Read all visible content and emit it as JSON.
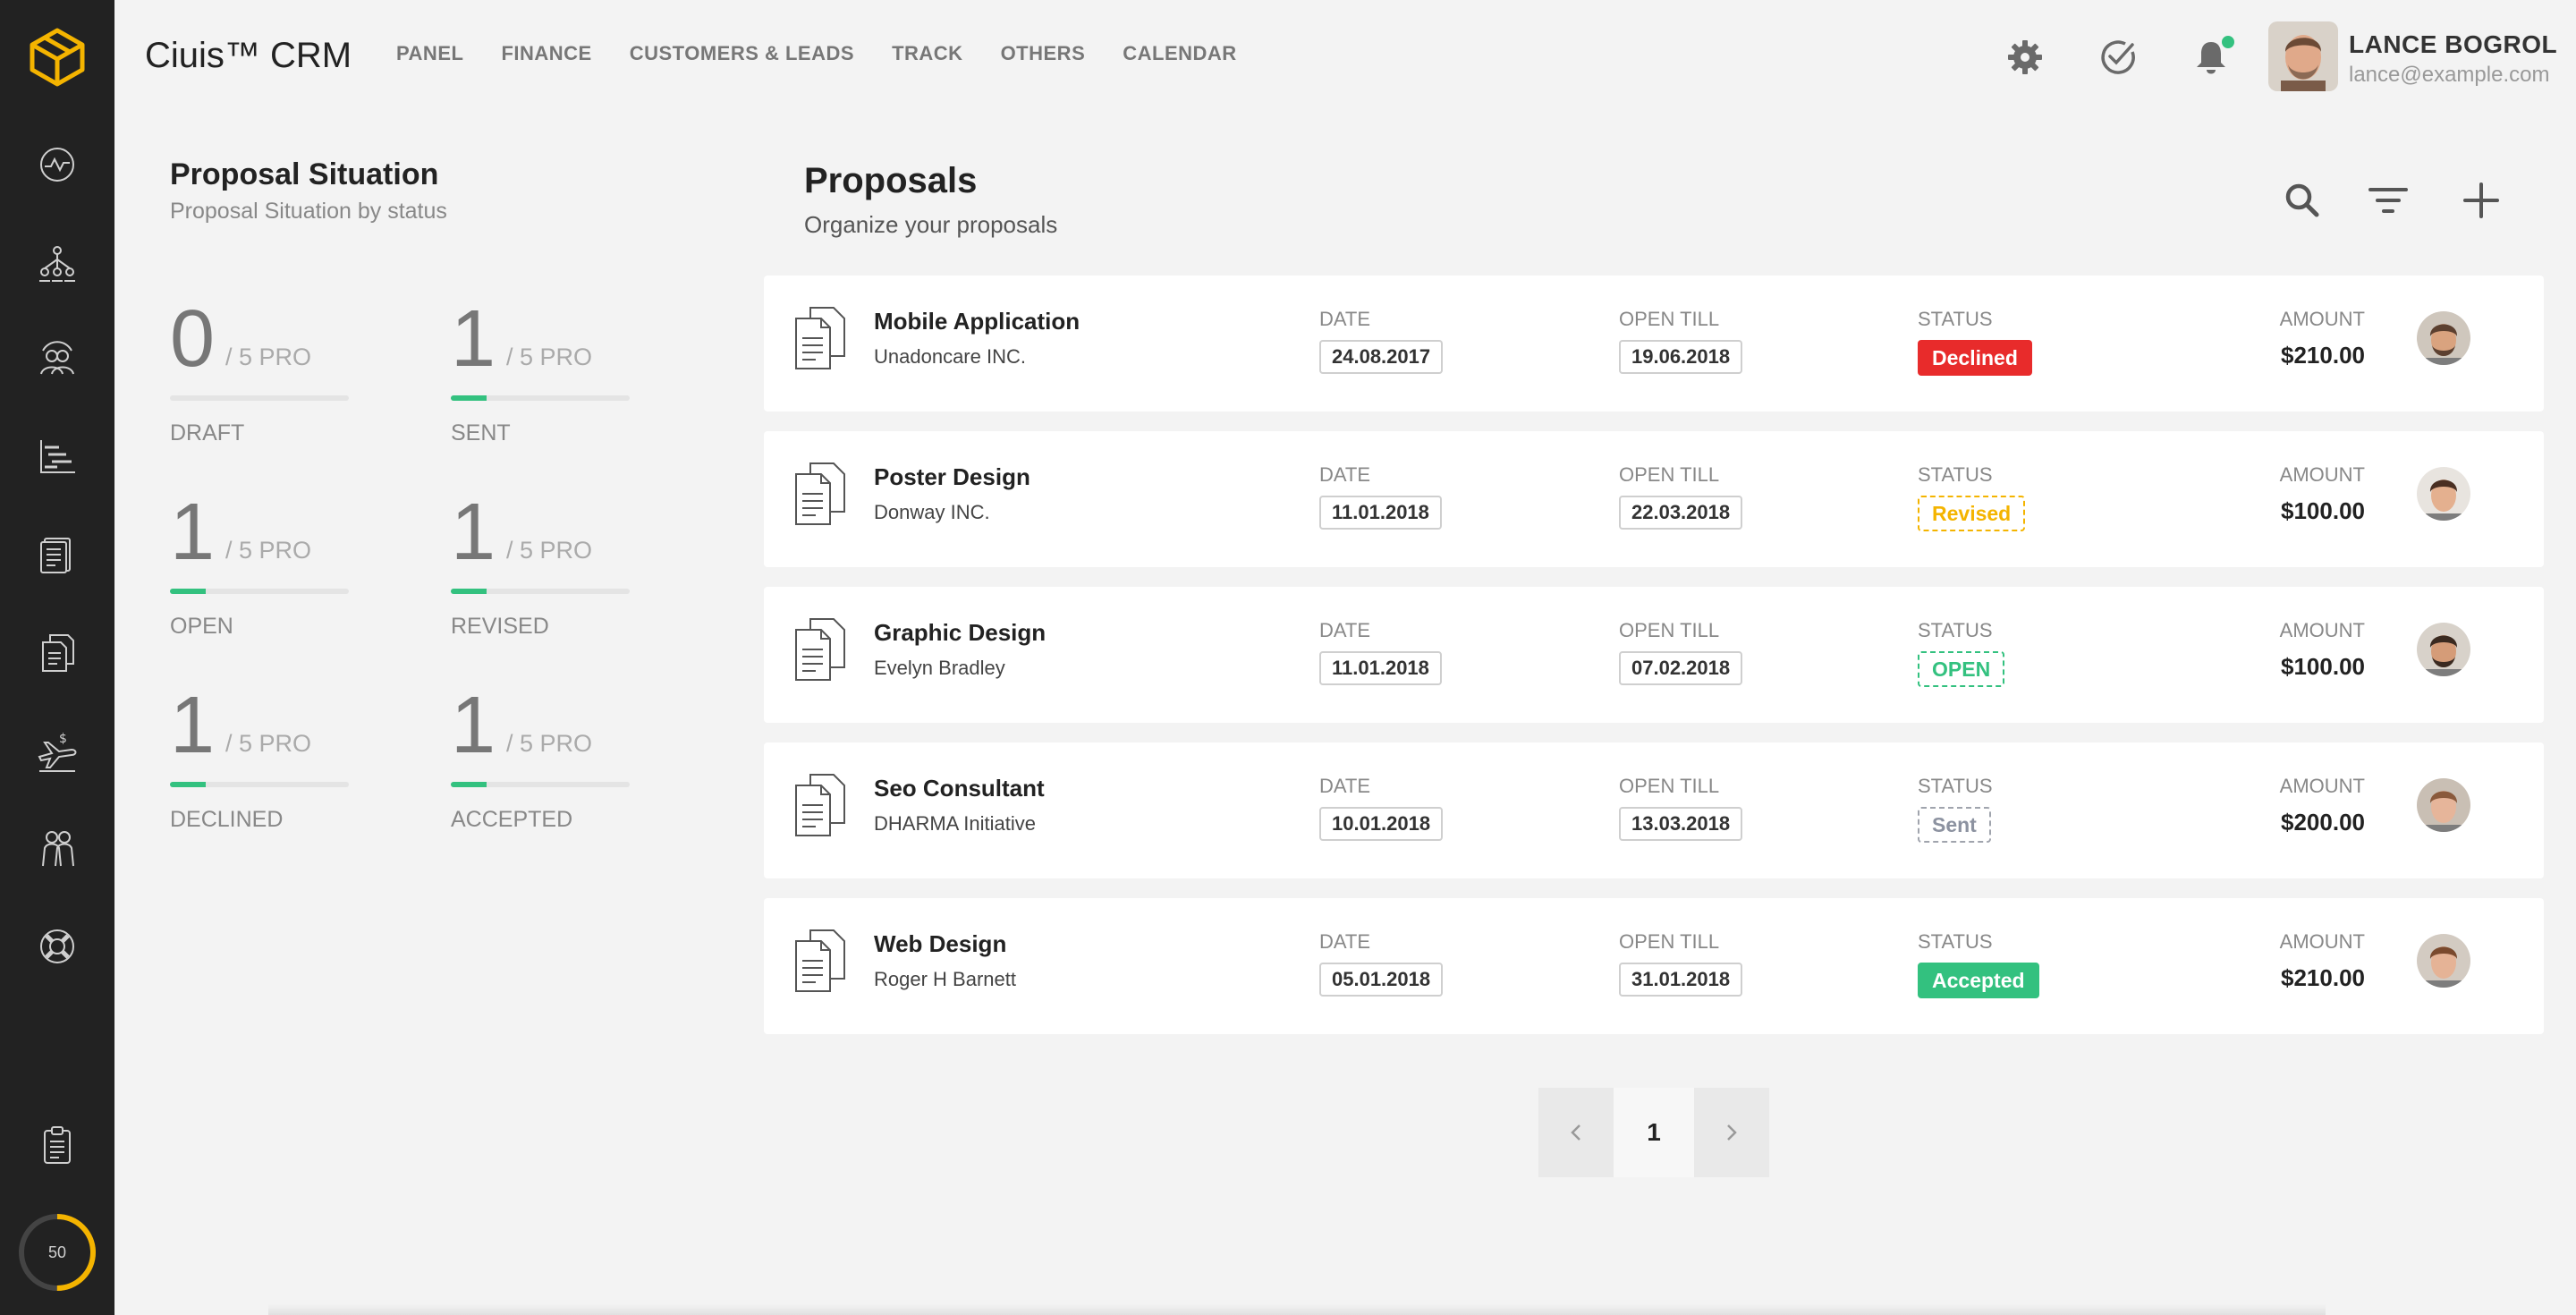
{
  "app": {
    "title": "Ciuis™ CRM"
  },
  "nav": [
    {
      "label": "PANEL"
    },
    {
      "label": "FINANCE"
    },
    {
      "label": "CUSTOMERS & LEADS"
    },
    {
      "label": "TRACK"
    },
    {
      "label": "OTHERS"
    },
    {
      "label": "CALENDAR"
    }
  ],
  "user": {
    "name": "LANCE BOGROL",
    "email": "lance@example.com"
  },
  "sidebar": {
    "icons": [
      "dashboard-icon",
      "org-chart-icon",
      "customers-icon",
      "tasks-icon",
      "invoices-icon",
      "proposals-icon",
      "expenses-icon",
      "staff-icon",
      "support-icon",
      "clipboard-icon"
    ],
    "gauge_value": "50"
  },
  "situation": {
    "title": "Proposal Situation",
    "subtitle": "Proposal Situation by status",
    "stats": [
      {
        "count": "0",
        "of": "/ 5 PRO",
        "label": "DRAFT",
        "fraction": 0.0
      },
      {
        "count": "1",
        "of": "/ 5 PRO",
        "label": "SENT",
        "fraction": 0.2
      },
      {
        "count": "1",
        "of": "/ 5 PRO",
        "label": "OPEN",
        "fraction": 0.2
      },
      {
        "count": "1",
        "of": "/ 5 PRO",
        "label": "REVISED",
        "fraction": 0.2
      },
      {
        "count": "1",
        "of": "/ 5 PRO",
        "label": "DECLINED",
        "fraction": 0.2
      },
      {
        "count": "1",
        "of": "/ 5 PRO",
        "label": "ACCEPTED",
        "fraction": 0.2
      }
    ]
  },
  "proposals": {
    "title": "Proposals",
    "subtitle": "Organize your proposals",
    "col_date": "DATE",
    "col_open_till": "OPEN TILL",
    "col_status": "STATUS",
    "col_amount": "AMOUNT",
    "items": [
      {
        "title": "Mobile Application",
        "client": "Unadoncare INC.",
        "date": "24.08.2017",
        "open_till": "19.06.2018",
        "status": "Declined",
        "status_type": "declined",
        "amount": "$210.00"
      },
      {
        "title": "Poster Design",
        "client": "Donway INC.",
        "date": "11.01.2018",
        "open_till": "22.03.2018",
        "status": "Revised",
        "status_type": "revised",
        "amount": "$100.00"
      },
      {
        "title": "Graphic Design",
        "client": "Evelyn Bradley",
        "date": "11.01.2018",
        "open_till": "07.02.2018",
        "status": "OPEN",
        "status_type": "open",
        "amount": "$100.00"
      },
      {
        "title": "Seo Consultant",
        "client": "DHARMA Initiative",
        "date": "10.01.2018",
        "open_till": "13.03.2018",
        "status": "Sent",
        "status_type": "sent",
        "amount": "$200.00"
      },
      {
        "title": "Web Design",
        "client": "Roger H Barnett",
        "date": "05.01.2018",
        "open_till": "31.01.2018",
        "status": "Accepted",
        "status_type": "accepted",
        "amount": "$210.00"
      }
    ]
  },
  "pagination": {
    "current": "1"
  },
  "colors": {
    "accent": "#33c17f",
    "logo": "#f4b400",
    "sidebar": "#222222",
    "declined": "#e82b2b",
    "revised": "#f4b400",
    "sent": "#8c92a0"
  }
}
